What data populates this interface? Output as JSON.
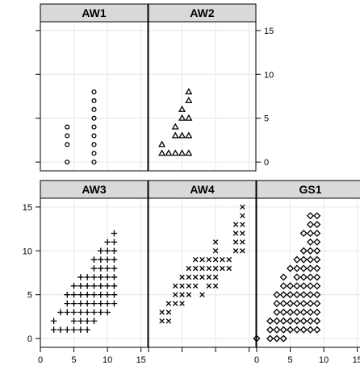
{
  "chart_data": {
    "type": "scatter",
    "layout": "lattice-trellis",
    "xlim": [
      0,
      16
    ],
    "ylim": [
      -1,
      16
    ],
    "xticks": [
      0,
      5,
      10,
      15
    ],
    "yticks": [
      0,
      5,
      10,
      15
    ],
    "tick_labels": [
      "0",
      "5",
      "10",
      "15"
    ],
    "grid": true,
    "panels": [
      {
        "name": "AW1",
        "symbol": "circle",
        "points": [
          [
            4,
            0
          ],
          [
            4,
            2
          ],
          [
            4,
            3
          ],
          [
            4,
            4
          ],
          [
            8,
            0
          ],
          [
            8,
            1
          ],
          [
            8,
            2
          ],
          [
            8,
            3
          ],
          [
            8,
            4
          ],
          [
            8,
            5
          ],
          [
            8,
            6
          ],
          [
            8,
            7
          ],
          [
            8,
            8
          ]
        ]
      },
      {
        "name": "AW2",
        "symbol": "triangle",
        "points": [
          [
            2,
            1
          ],
          [
            2,
            2
          ],
          [
            3,
            1
          ],
          [
            4,
            1
          ],
          [
            4,
            3
          ],
          [
            4,
            4
          ],
          [
            5,
            1
          ],
          [
            5,
            3
          ],
          [
            5,
            5
          ],
          [
            5,
            6
          ],
          [
            6,
            1
          ],
          [
            6,
            3
          ],
          [
            6,
            5
          ],
          [
            6,
            7
          ],
          [
            6,
            8
          ]
        ]
      },
      {
        "name": "AW3",
        "symbol": "plus",
        "points": [
          [
            2,
            1
          ],
          [
            3,
            1
          ],
          [
            4,
            1
          ],
          [
            5,
            1
          ],
          [
            6,
            1
          ],
          [
            7,
            1
          ],
          [
            2,
            2
          ],
          [
            5,
            2
          ],
          [
            6,
            2
          ],
          [
            7,
            2
          ],
          [
            8,
            2
          ],
          [
            3,
            3
          ],
          [
            4,
            3
          ],
          [
            5,
            3
          ],
          [
            6,
            3
          ],
          [
            7,
            3
          ],
          [
            8,
            3
          ],
          [
            9,
            3
          ],
          [
            10,
            3
          ],
          [
            4,
            4
          ],
          [
            5,
            4
          ],
          [
            6,
            4
          ],
          [
            7,
            4
          ],
          [
            8,
            4
          ],
          [
            9,
            4
          ],
          [
            10,
            4
          ],
          [
            11,
            4
          ],
          [
            4,
            5
          ],
          [
            5,
            5
          ],
          [
            6,
            5
          ],
          [
            7,
            5
          ],
          [
            8,
            5
          ],
          [
            9,
            5
          ],
          [
            10,
            5
          ],
          [
            11,
            5
          ],
          [
            5,
            6
          ],
          [
            6,
            6
          ],
          [
            7,
            6
          ],
          [
            8,
            6
          ],
          [
            9,
            6
          ],
          [
            10,
            6
          ],
          [
            11,
            6
          ],
          [
            6,
            7
          ],
          [
            7,
            7
          ],
          [
            8,
            7
          ],
          [
            9,
            7
          ],
          [
            10,
            7
          ],
          [
            11,
            7
          ],
          [
            8,
            8
          ],
          [
            9,
            8
          ],
          [
            10,
            8
          ],
          [
            11,
            8
          ],
          [
            8,
            9
          ],
          [
            9,
            9
          ],
          [
            10,
            9
          ],
          [
            11,
            9
          ],
          [
            9,
            10
          ],
          [
            10,
            10
          ],
          [
            11,
            10
          ],
          [
            10,
            11
          ],
          [
            11,
            11
          ],
          [
            11,
            12
          ]
        ]
      },
      {
        "name": "AW4",
        "symbol": "cross",
        "points": [
          [
            2,
            2
          ],
          [
            3,
            2
          ],
          [
            2,
            3
          ],
          [
            3,
            3
          ],
          [
            3,
            4
          ],
          [
            4,
            4
          ],
          [
            5,
            4
          ],
          [
            4,
            5
          ],
          [
            5,
            5
          ],
          [
            6,
            5
          ],
          [
            8,
            5
          ],
          [
            4,
            6
          ],
          [
            5,
            6
          ],
          [
            6,
            6
          ],
          [
            7,
            6
          ],
          [
            9,
            6
          ],
          [
            10,
            6
          ],
          [
            5,
            7
          ],
          [
            6,
            7
          ],
          [
            7,
            7
          ],
          [
            8,
            7
          ],
          [
            9,
            7
          ],
          [
            10,
            7
          ],
          [
            6,
            8
          ],
          [
            7,
            8
          ],
          [
            8,
            8
          ],
          [
            9,
            8
          ],
          [
            10,
            8
          ],
          [
            11,
            8
          ],
          [
            12,
            8
          ],
          [
            7,
            9
          ],
          [
            8,
            9
          ],
          [
            9,
            9
          ],
          [
            10,
            9
          ],
          [
            11,
            9
          ],
          [
            12,
            9
          ],
          [
            10,
            10
          ],
          [
            13,
            10
          ],
          [
            14,
            10
          ],
          [
            10,
            11
          ],
          [
            13,
            11
          ],
          [
            14,
            11
          ],
          [
            13,
            12
          ],
          [
            14,
            12
          ],
          [
            13,
            13
          ],
          [
            14,
            13
          ],
          [
            14,
            14
          ],
          [
            14,
            15
          ]
        ]
      },
      {
        "name": "GS1",
        "symbol": "diamond",
        "points": [
          [
            0,
            0
          ],
          [
            2,
            0
          ],
          [
            3,
            0
          ],
          [
            4,
            0
          ],
          [
            2,
            1
          ],
          [
            3,
            1
          ],
          [
            4,
            1
          ],
          [
            5,
            1
          ],
          [
            6,
            1
          ],
          [
            7,
            1
          ],
          [
            8,
            1
          ],
          [
            9,
            1
          ],
          [
            2,
            2
          ],
          [
            3,
            2
          ],
          [
            4,
            2
          ],
          [
            5,
            2
          ],
          [
            6,
            2
          ],
          [
            7,
            2
          ],
          [
            8,
            2
          ],
          [
            9,
            2
          ],
          [
            3,
            3
          ],
          [
            4,
            3
          ],
          [
            5,
            3
          ],
          [
            6,
            3
          ],
          [
            7,
            3
          ],
          [
            8,
            3
          ],
          [
            9,
            3
          ],
          [
            3,
            4
          ],
          [
            4,
            4
          ],
          [
            5,
            4
          ],
          [
            6,
            4
          ],
          [
            7,
            4
          ],
          [
            8,
            4
          ],
          [
            9,
            4
          ],
          [
            3,
            5
          ],
          [
            4,
            5
          ],
          [
            5,
            5
          ],
          [
            6,
            5
          ],
          [
            7,
            5
          ],
          [
            8,
            5
          ],
          [
            9,
            5
          ],
          [
            4,
            6
          ],
          [
            5,
            6
          ],
          [
            6,
            6
          ],
          [
            7,
            6
          ],
          [
            8,
            6
          ],
          [
            9,
            6
          ],
          [
            4,
            7
          ],
          [
            6,
            7
          ],
          [
            7,
            7
          ],
          [
            8,
            7
          ],
          [
            9,
            7
          ],
          [
            5,
            8
          ],
          [
            6,
            8
          ],
          [
            7,
            8
          ],
          [
            8,
            8
          ],
          [
            9,
            8
          ],
          [
            6,
            9
          ],
          [
            7,
            9
          ],
          [
            8,
            9
          ],
          [
            9,
            9
          ],
          [
            7,
            10
          ],
          [
            8,
            10
          ],
          [
            9,
            10
          ],
          [
            8,
            11
          ],
          [
            9,
            11
          ],
          [
            7,
            12
          ],
          [
            8,
            12
          ],
          [
            9,
            12
          ],
          [
            8,
            13
          ],
          [
            9,
            13
          ],
          [
            8,
            14
          ],
          [
            9,
            14
          ]
        ]
      }
    ]
  }
}
